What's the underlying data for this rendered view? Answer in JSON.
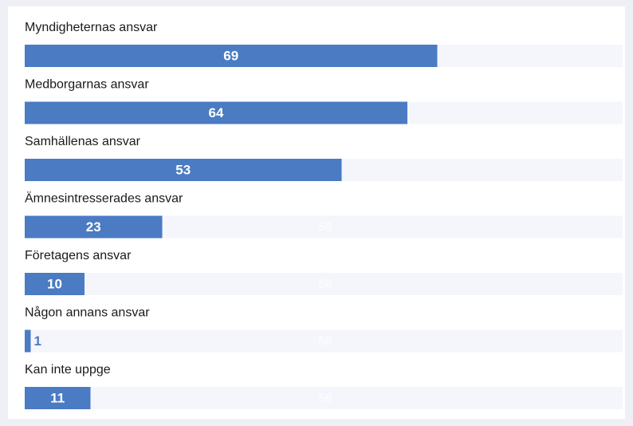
{
  "chart_data": {
    "type": "bar",
    "orientation": "horizontal",
    "categories": [
      "Myndigheternas ansvar",
      "Medborgarnas ansvar",
      "Samhällenas ansvar",
      "Ämnesintresserades ansvar",
      "Företagens ansvar",
      "Någon annans ansvar",
      "Kan inte uppge"
    ],
    "values": [
      69,
      64,
      53,
      23,
      10,
      1,
      11
    ],
    "track_labels": [
      null,
      null,
      null,
      56,
      56,
      56,
      56
    ],
    "color": "#4a7bc3",
    "xlim": [
      0,
      100
    ]
  }
}
